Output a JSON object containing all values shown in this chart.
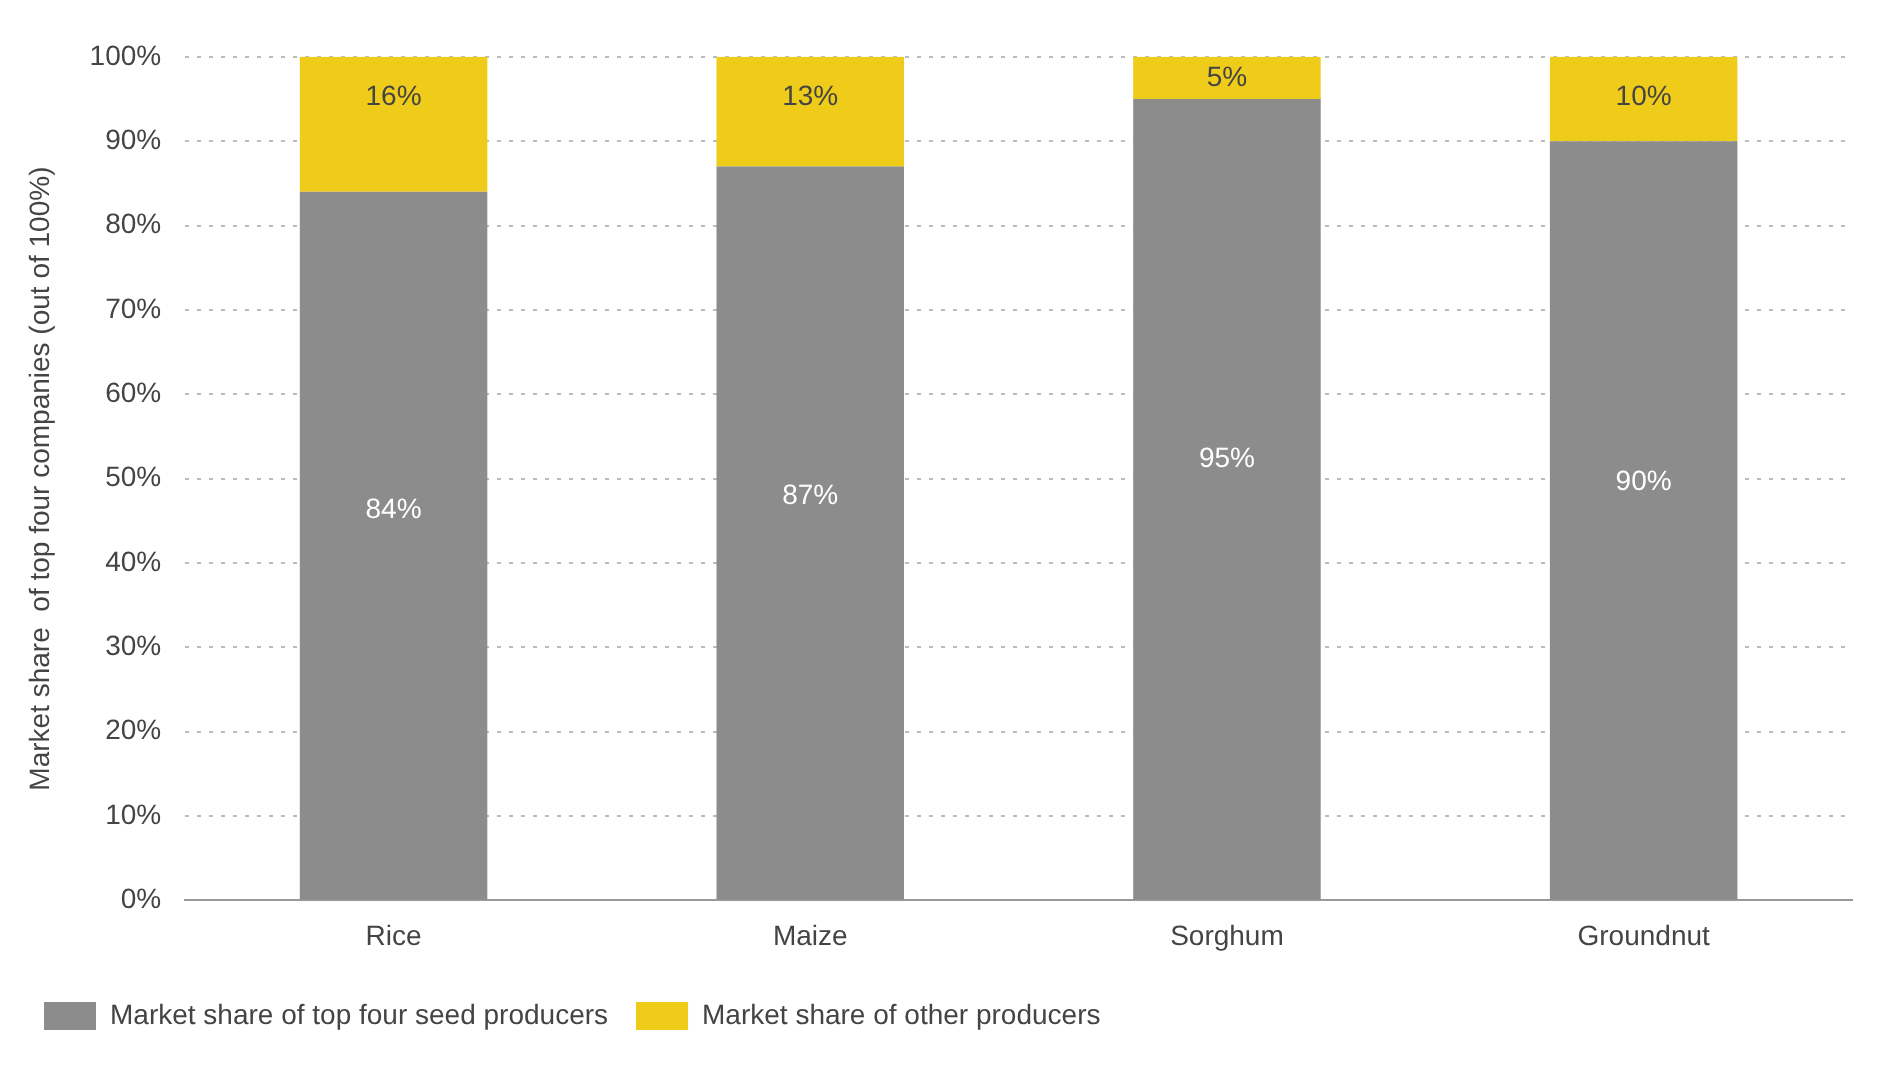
{
  "chart_data": {
    "type": "bar",
    "stacked": true,
    "ylabel": "Market share  of top four companies (out of 100%)",
    "categories": [
      "Rice",
      "Maize",
      "Sorghum",
      "Groundnut"
    ],
    "series": [
      {
        "name": "Market share of top four seed producers",
        "color": "#8c8c8c",
        "values": [
          84,
          87,
          95,
          90
        ],
        "value_labels": [
          "84%",
          "87%",
          "95%",
          "90%"
        ]
      },
      {
        "name": "Market share of other producers",
        "color": "#f0cc1a",
        "values": [
          16,
          13,
          5,
          10
        ],
        "value_labels": [
          "16%",
          "13%",
          "5%",
          "10%"
        ]
      }
    ],
    "ylim": [
      0,
      100
    ],
    "yticks": [
      {
        "value": 0,
        "label": "0%"
      },
      {
        "value": 10,
        "label": "10%"
      },
      {
        "value": 20,
        "label": "20%"
      },
      {
        "value": 30,
        "label": "30%"
      },
      {
        "value": 40,
        "label": "40%"
      },
      {
        "value": 50,
        "label": "50%"
      },
      {
        "value": 60,
        "label": "60%"
      },
      {
        "value": 70,
        "label": "70%"
      },
      {
        "value": 80,
        "label": "80%"
      },
      {
        "value": 90,
        "label": "90%"
      },
      {
        "value": 100,
        "label": "100%"
      }
    ],
    "grid": "y",
    "legend": "bottom"
  }
}
